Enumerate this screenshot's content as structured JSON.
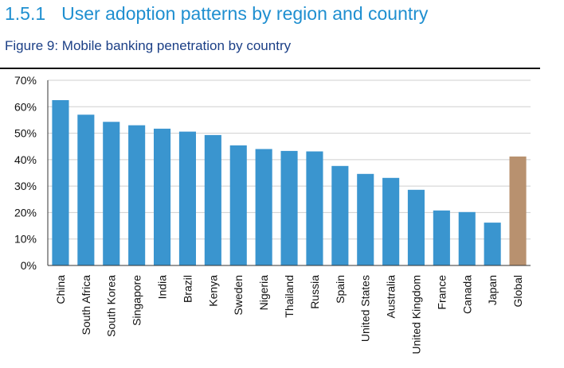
{
  "heading": {
    "number": "1.5.1",
    "title": "User adoption patterns by region and country"
  },
  "figure": {
    "caption": "Figure 9: Mobile banking penetration by country"
  },
  "colors": {
    "heading": "#1f8fd0",
    "caption": "#1b3f86",
    "bar": "#3a95cf",
    "highlight_bar": "#b8916f"
  },
  "chart_data": {
    "type": "bar",
    "title": "",
    "xlabel": "",
    "ylabel": "",
    "ylim": [
      0,
      70
    ],
    "y_ticks": [
      0,
      10,
      20,
      30,
      40,
      50,
      60,
      70
    ],
    "y_tick_labels": [
      "0%",
      "10%",
      "20%",
      "30%",
      "40%",
      "50%",
      "60%",
      "70%"
    ],
    "grid": true,
    "legend": "none",
    "categories": [
      "China",
      "South Africa",
      "South Korea",
      "Singapore",
      "India",
      "Brazil",
      "Kenya",
      "Sweden",
      "Nigeria",
      "Thailand",
      "Russia",
      "Spain",
      "United States",
      "Australia",
      "United Kingdom",
      "France",
      "Canada",
      "Japan",
      "Global"
    ],
    "values": [
      62.5,
      57,
      54.3,
      53,
      51.7,
      50.6,
      49.3,
      45.4,
      44,
      43.3,
      43.1,
      37.6,
      34.6,
      33.1,
      28.6,
      20.8,
      20.2,
      16.2,
      41.2
    ],
    "highlighted_categories": [
      "Global"
    ]
  }
}
